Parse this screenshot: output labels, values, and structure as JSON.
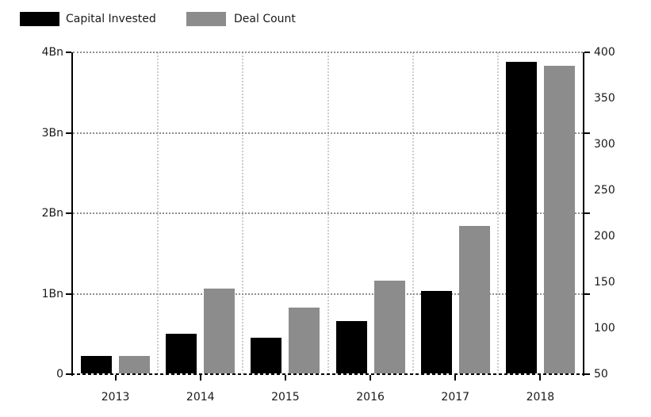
{
  "chart_data": {
    "type": "bar",
    "title": "",
    "categories": [
      "2013",
      "2014",
      "2015",
      "2016",
      "2017",
      "2018"
    ],
    "series": [
      {
        "name": "Capital Invested",
        "axis": "left",
        "color": "#000000",
        "values": [
          0.23,
          0.5,
          0.45,
          0.66,
          1.03,
          3.88
        ]
      },
      {
        "name": "Deal Count",
        "axis": "right",
        "color": "#8c8c8c",
        "values": [
          70,
          143,
          122,
          152,
          211,
          385
        ]
      }
    ],
    "left_axis": {
      "min": 0,
      "max": 4,
      "unit": "Bn",
      "tick_values": [
        0,
        1,
        2,
        3,
        4
      ],
      "tick_labels": [
        "0",
        "1Bn",
        "2Bn",
        "3Bn",
        "4Bn"
      ]
    },
    "right_axis": {
      "min": 50,
      "max": 400,
      "tick_values": [
        50,
        100,
        150,
        200,
        250,
        300,
        350,
        400
      ],
      "tick_labels": [
        "50",
        "100",
        "150",
        "200",
        "250",
        "300",
        "350",
        "400"
      ]
    },
    "legend": {
      "position": "top-left"
    },
    "grid": {
      "horizontal": "dotted",
      "vertical": "dotted"
    },
    "colors": {
      "background": "#ffffff",
      "text": "#1a1a1a",
      "axis": "#000000",
      "grid_horizontal": "#8f8f8f",
      "grid_vertical": "#cccccc"
    }
  }
}
